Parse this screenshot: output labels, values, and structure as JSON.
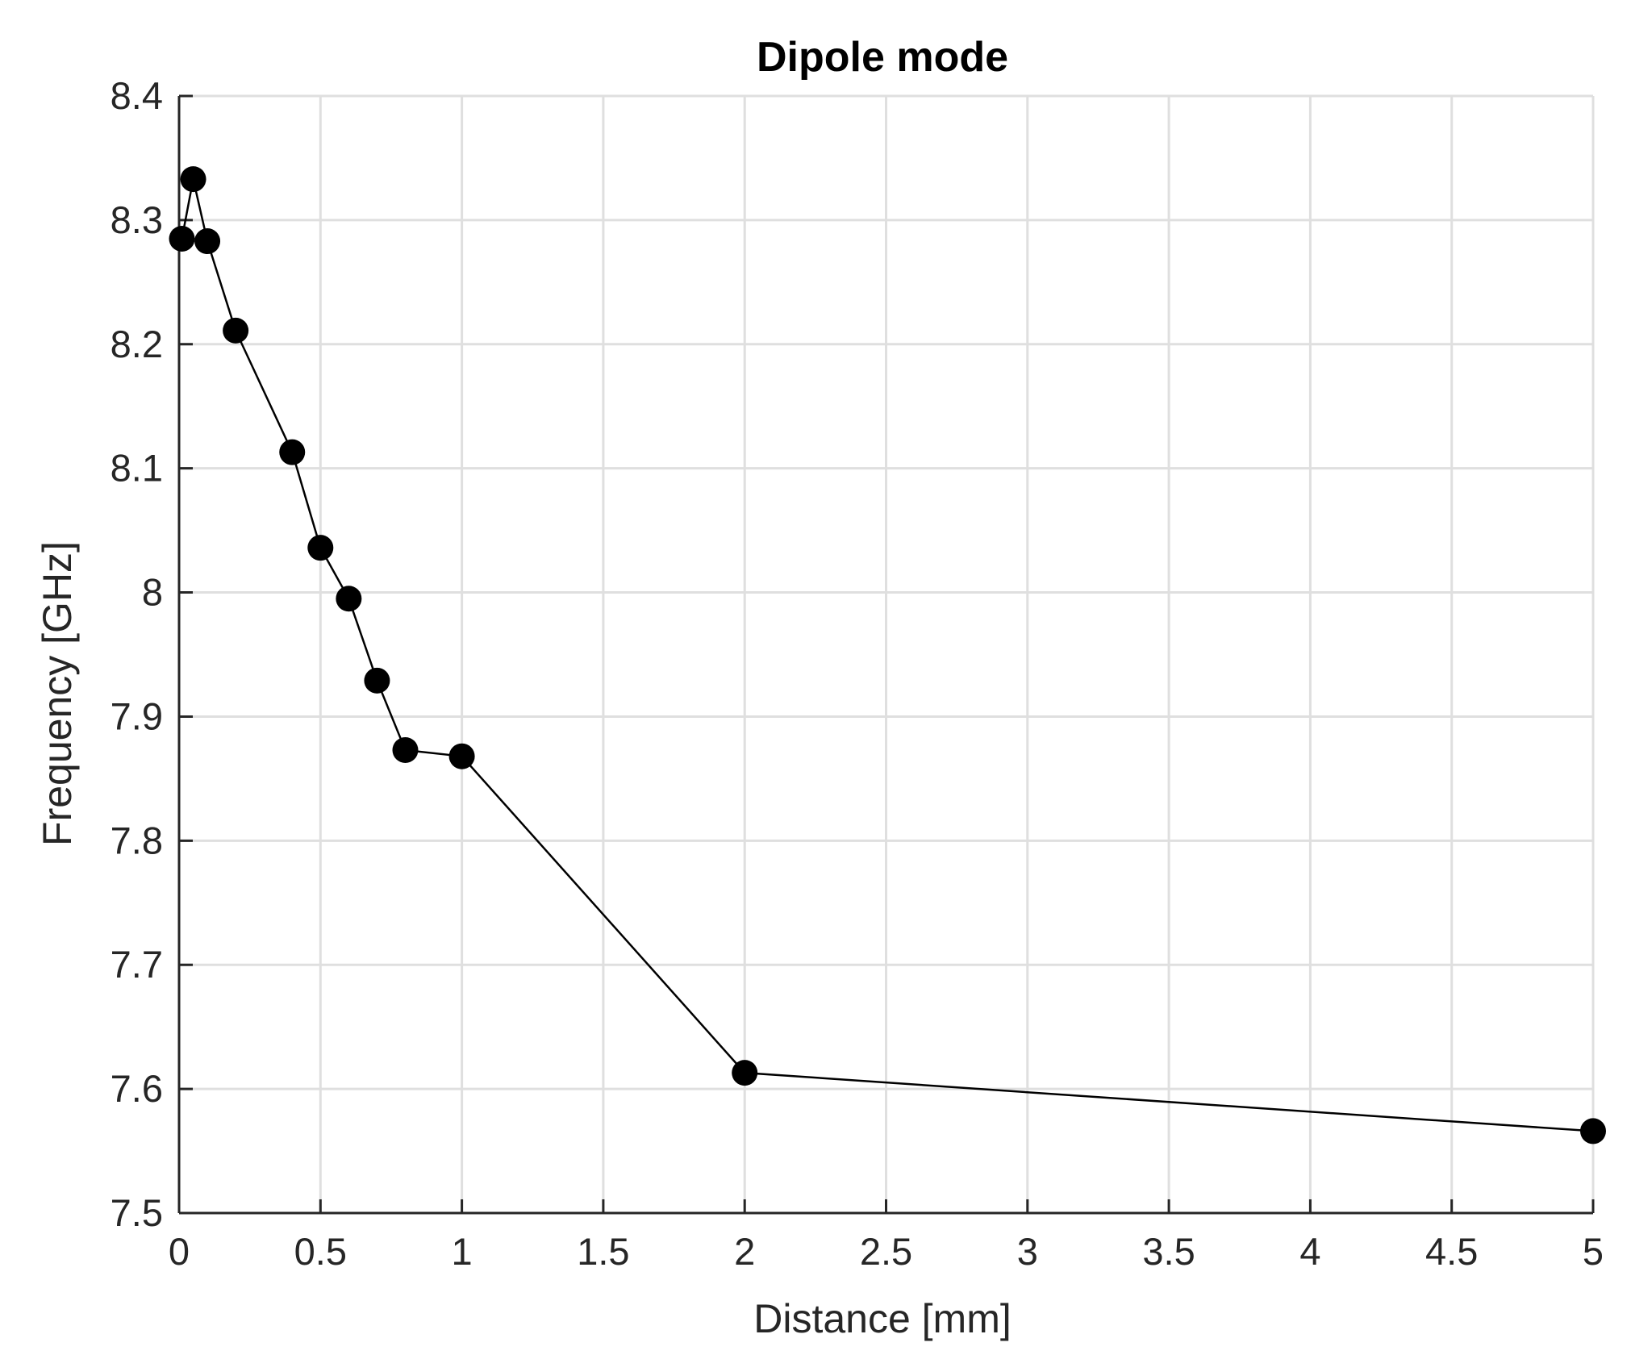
{
  "chart_data": {
    "type": "line",
    "title": "Dipole mode",
    "xlabel": "Distance [mm]",
    "ylabel": "Frequency [GHz]",
    "xlim": [
      0,
      5
    ],
    "ylim": [
      7.5,
      8.4
    ],
    "xticks": [
      0,
      0.5,
      1,
      1.5,
      2,
      2.5,
      3,
      3.5,
      4,
      4.5,
      5
    ],
    "xtick_labels": [
      "0",
      "0.5",
      "1",
      "1.5",
      "2",
      "2.5",
      "3",
      "3.5",
      "4",
      "4.5",
      "5"
    ],
    "yticks": [
      7.5,
      7.6,
      7.7,
      7.8,
      7.9,
      8.0,
      8.1,
      8.2,
      8.3,
      8.4
    ],
    "ytick_labels": [
      "7.5",
      "7.6",
      "7.7",
      "7.8",
      "7.9",
      "8",
      "8.1",
      "8.2",
      "8.3",
      "8.4"
    ],
    "grid": true,
    "series": [
      {
        "color": "#000000",
        "marker": "filled-circle",
        "x": [
          0.01,
          0.05,
          0.1,
          0.2,
          0.4,
          0.5,
          0.6,
          0.7,
          0.8,
          1.0,
          2.0,
          5.0
        ],
        "y": [
          8.285,
          8.333,
          8.283,
          8.211,
          8.113,
          8.036,
          7.995,
          7.929,
          7.873,
          7.868,
          7.613,
          7.566
        ]
      }
    ]
  }
}
